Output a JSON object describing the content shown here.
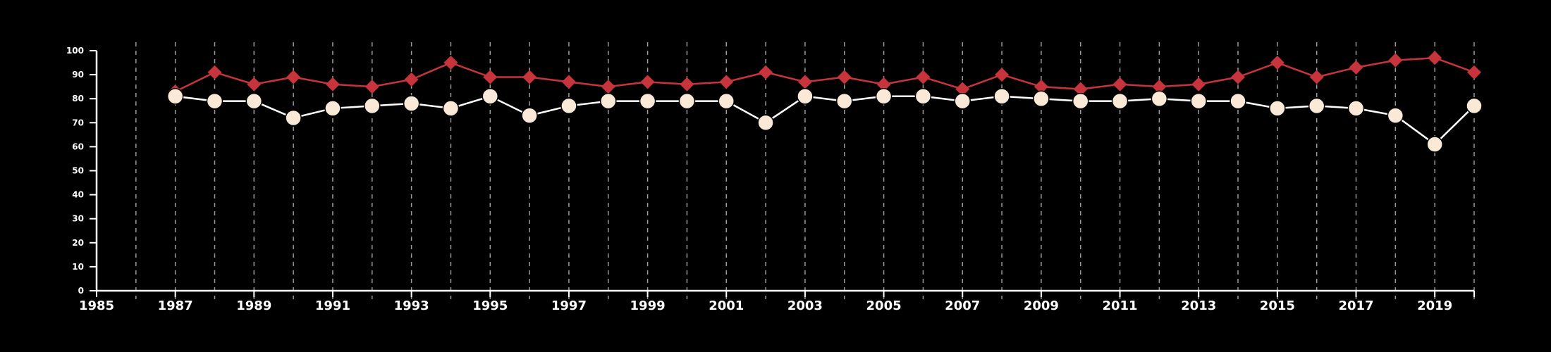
{
  "chart_data": {
    "type": "line",
    "title": "",
    "xlabel": "",
    "ylabel": "",
    "xlim": [
      1985,
      2020
    ],
    "ylim": [
      0,
      100
    ],
    "x_ticks": [
      1985,
      1987,
      1989,
      1991,
      1993,
      1995,
      1997,
      1999,
      2001,
      2003,
      2005,
      2007,
      2009,
      2011,
      2013,
      2015,
      2017,
      2019
    ],
    "y_ticks": [
      0,
      10,
      20,
      30,
      40,
      50,
      60,
      70,
      80,
      90,
      100
    ],
    "grid": "vertical dashed lines at every year",
    "legend": "none",
    "x": [
      1987,
      1988,
      1989,
      1990,
      1991,
      1992,
      1993,
      1994,
      1995,
      1996,
      1997,
      1998,
      1999,
      2000,
      2001,
      2002,
      2003,
      2004,
      2005,
      2006,
      2007,
      2008,
      2009,
      2010,
      2011,
      2012,
      2013,
      2014,
      2015,
      2016,
      2017,
      2018,
      2019,
      2020
    ],
    "series": [
      {
        "marker": "diamond",
        "color": "#c8343c",
        "values": [
          83,
          91,
          86,
          89,
          86,
          85,
          88,
          95,
          89,
          89,
          87,
          85,
          87,
          86,
          87,
          91,
          87,
          89,
          86,
          89,
          84,
          90,
          85,
          84,
          86,
          85,
          86,
          89,
          95,
          89,
          93,
          96,
          97,
          91
        ]
      },
      {
        "marker": "circle",
        "color": "#fbe9d8",
        "line_color": "#ffffff",
        "values": [
          81,
          79,
          79,
          72,
          76,
          77,
          78,
          76,
          81,
          73,
          77,
          79,
          79,
          79,
          79,
          70,
          81,
          79,
          81,
          81,
          79,
          81,
          80,
          79,
          79,
          80,
          79,
          79,
          76,
          77,
          76,
          73,
          61,
          77
        ]
      }
    ]
  }
}
